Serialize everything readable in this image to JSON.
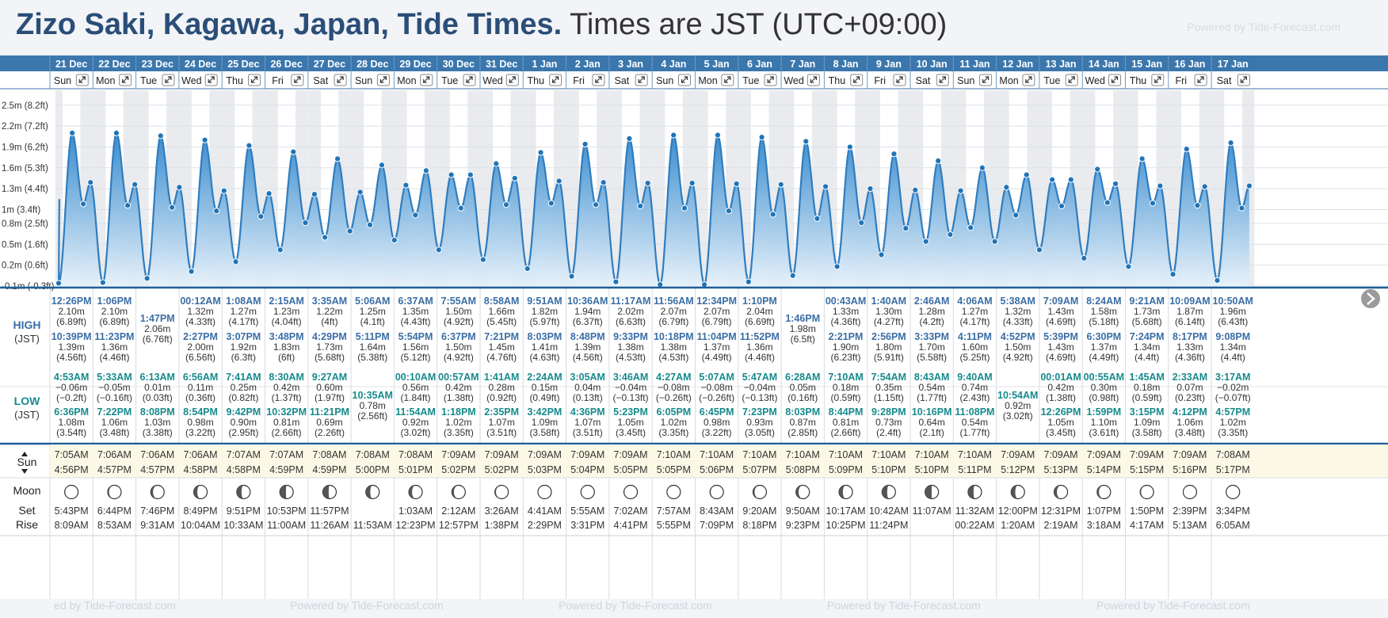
{
  "title": "Zizo Saki, Kagawa, Japan, Tide Times.",
  "title_tz": "Times are JST (UTC+09:00)",
  "powered_by": "Powered by Tide-Forecast.com",
  "powered_by_cut": "ed by Tide-Forecast.com",
  "colors": {
    "header_blue": "#3b77ad",
    "tide_fill": "#3b8fd0",
    "tide_line": "#2f7dbf",
    "high_text": "#3a6ea5",
    "low_text": "#178a8c",
    "sun_bg": "#fbf9e6"
  },
  "labels": {
    "high": "HIGH",
    "low": "LOW",
    "jst": "(JST)",
    "sun": "Sun",
    "moon": "Moon",
    "set": "Set",
    "rise": "Rise"
  },
  "expand_icon": "expand-arrows-icon",
  "chart_data": {
    "type": "area",
    "ylabel": "",
    "y_axis_unit": "m",
    "y_ticks": [
      "-0.1m (-0.3ft)",
      "0.2m (0.6ft)",
      "0.5m (1.6ft)",
      "0.8m (2.5ft)",
      "1m (3.4ft)",
      "1.3m (4.4ft)",
      "1.6m (5.3ft)",
      "1.9m (6.2ft)",
      "2.2m (7.2ft)",
      "2.5m (8.2ft)"
    ],
    "y_tick_values": [
      -0.1,
      0.2,
      0.5,
      0.8,
      1.0,
      1.3,
      1.6,
      1.9,
      2.2,
      2.5
    ],
    "ylim": [
      -0.1,
      2.6
    ],
    "days": [
      {
        "date": "21 Dec",
        "dow": "Sun",
        "highs": [
          {
            "time": "12:26PM",
            "m": "2.10m",
            "ft": "(6.89ft)"
          },
          {
            "time": "10:39PM",
            "m": "1.39m",
            "ft": "(4.56ft)"
          }
        ],
        "lows": [
          {
            "time": "4:53AM",
            "m": "−0.06m",
            "ft": "(−0.2ft)"
          },
          {
            "time": "6:36PM",
            "m": "1.08m",
            "ft": "(3.54ft)"
          }
        ],
        "sunrise": "7:05AM",
        "sunset": "4:56PM",
        "moon_set": "5:43PM",
        "moon_rise": "8:09AM"
      },
      {
        "date": "22 Dec",
        "dow": "Mon",
        "highs": [
          {
            "time": "1:06PM",
            "m": "2.10m",
            "ft": "(6.89ft)"
          },
          {
            "time": "11:23PM",
            "m": "1.36m",
            "ft": "(4.46ft)"
          }
        ],
        "lows": [
          {
            "time": "5:33AM",
            "m": "−0.05m",
            "ft": "(−0.16ft)"
          },
          {
            "time": "7:22PM",
            "m": "1.06m",
            "ft": "(3.48ft)"
          }
        ],
        "sunrise": "7:06AM",
        "sunset": "4:57PM",
        "moon_set": "6:44PM",
        "moon_rise": "8:53AM"
      },
      {
        "date": "23 Dec",
        "dow": "Tue",
        "highs": [
          {
            "time": "1:47PM",
            "m": "2.06m",
            "ft": "(6.76ft)"
          }
        ],
        "lows": [
          {
            "time": "6:13AM",
            "m": "0.01m",
            "ft": "(0.03ft)"
          },
          {
            "time": "8:08PM",
            "m": "1.03m",
            "ft": "(3.38ft)"
          }
        ],
        "sunrise": "7:06AM",
        "sunset": "4:57PM",
        "moon_set": "7:46PM",
        "moon_rise": "9:31AM"
      },
      {
        "date": "24 Dec",
        "dow": "Wed",
        "highs": [
          {
            "time": "00:12AM",
            "m": "1.32m",
            "ft": "(4.33ft)"
          },
          {
            "time": "2:27PM",
            "m": "2.00m",
            "ft": "(6.56ft)"
          }
        ],
        "lows": [
          {
            "time": "6:56AM",
            "m": "0.11m",
            "ft": "(0.36ft)"
          },
          {
            "time": "8:54PM",
            "m": "0.98m",
            "ft": "(3.22ft)"
          }
        ],
        "sunrise": "7:06AM",
        "sunset": "4:58PM",
        "moon_set": "8:49PM",
        "moon_rise": "10:04AM"
      },
      {
        "date": "25 Dec",
        "dow": "Thu",
        "highs": [
          {
            "time": "1:08AM",
            "m": "1.27m",
            "ft": "(4.17ft)"
          },
          {
            "time": "3:07PM",
            "m": "1.92m",
            "ft": "(6.3ft)"
          }
        ],
        "lows": [
          {
            "time": "7:41AM",
            "m": "0.25m",
            "ft": "(0.82ft)"
          },
          {
            "time": "9:42PM",
            "m": "0.90m",
            "ft": "(2.95ft)"
          }
        ],
        "sunrise": "7:07AM",
        "sunset": "4:58PM",
        "moon_set": "9:51PM",
        "moon_rise": "10:33AM"
      },
      {
        "date": "26 Dec",
        "dow": "Fri",
        "highs": [
          {
            "time": "2:15AM",
            "m": "1.23m",
            "ft": "(4.04ft)"
          },
          {
            "time": "3:48PM",
            "m": "1.83m",
            "ft": "(6ft)"
          }
        ],
        "lows": [
          {
            "time": "8:30AM",
            "m": "0.42m",
            "ft": "(1.37ft)"
          },
          {
            "time": "10:32PM",
            "m": "0.81m",
            "ft": "(2.66ft)"
          }
        ],
        "sunrise": "7:07AM",
        "sunset": "4:59PM",
        "moon_set": "10:53PM",
        "moon_rise": "11:00AM"
      },
      {
        "date": "27 Dec",
        "dow": "Sat",
        "highs": [
          {
            "time": "3:35AM",
            "m": "1.22m",
            "ft": "(4ft)"
          },
          {
            "time": "4:29PM",
            "m": "1.73m",
            "ft": "(5.68ft)"
          }
        ],
        "lows": [
          {
            "time": "9:27AM",
            "m": "0.60m",
            "ft": "(1.97ft)"
          },
          {
            "time": "11:21PM",
            "m": "0.69m",
            "ft": "(2.26ft)"
          }
        ],
        "sunrise": "7:08AM",
        "sunset": "4:59PM",
        "moon_set": "11:57PM",
        "moon_rise": "11:26AM"
      },
      {
        "date": "28 Dec",
        "dow": "Sun",
        "highs": [
          {
            "time": "5:06AM",
            "m": "1.25m",
            "ft": "(4.1ft)"
          },
          {
            "time": "5:11PM",
            "m": "1.64m",
            "ft": "(5.38ft)"
          }
        ],
        "lows": [
          {
            "time": "10:35AM",
            "m": "0.78m",
            "ft": "(2.56ft)"
          }
        ],
        "sunrise": "7:08AM",
        "sunset": "5:00PM",
        "moon_set": "",
        "moon_rise": "11:53AM"
      },
      {
        "date": "29 Dec",
        "dow": "Mon",
        "highs": [
          {
            "time": "6:37AM",
            "m": "1.35m",
            "ft": "(4.43ft)"
          },
          {
            "time": "5:54PM",
            "m": "1.56m",
            "ft": "(5.12ft)"
          }
        ],
        "lows": [
          {
            "time": "00:10AM",
            "m": "0.56m",
            "ft": "(1.84ft)"
          },
          {
            "time": "11:54AM",
            "m": "0.92m",
            "ft": "(3.02ft)"
          }
        ],
        "sunrise": "7:08AM",
        "sunset": "5:01PM",
        "moon_set": "1:03AM",
        "moon_rise": "12:23PM"
      },
      {
        "date": "30 Dec",
        "dow": "Tue",
        "highs": [
          {
            "time": "7:55AM",
            "m": "1.50m",
            "ft": "(4.92ft)"
          },
          {
            "time": "6:37PM",
            "m": "1.50m",
            "ft": "(4.92ft)"
          }
        ],
        "lows": [
          {
            "time": "00:57AM",
            "m": "0.42m",
            "ft": "(1.38ft)"
          },
          {
            "time": "1:18PM",
            "m": "1.02m",
            "ft": "(3.35ft)"
          }
        ],
        "sunrise": "7:09AM",
        "sunset": "5:02PM",
        "moon_set": "2:12AM",
        "moon_rise": "12:57PM"
      },
      {
        "date": "31 Dec",
        "dow": "Wed",
        "highs": [
          {
            "time": "8:58AM",
            "m": "1.66m",
            "ft": "(5.45ft)"
          },
          {
            "time": "7:21PM",
            "m": "1.45m",
            "ft": "(4.76ft)"
          }
        ],
        "lows": [
          {
            "time": "1:41AM",
            "m": "0.28m",
            "ft": "(0.92ft)"
          },
          {
            "time": "2:35PM",
            "m": "1.07m",
            "ft": "(3.51ft)"
          }
        ],
        "sunrise": "7:09AM",
        "sunset": "5:02PM",
        "moon_set": "3:26AM",
        "moon_rise": "1:38PM"
      },
      {
        "date": "1 Jan",
        "dow": "Thu",
        "highs": [
          {
            "time": "9:51AM",
            "m": "1.82m",
            "ft": "(5.97ft)"
          },
          {
            "time": "8:03PM",
            "m": "1.41m",
            "ft": "(4.63ft)"
          }
        ],
        "lows": [
          {
            "time": "2:24AM",
            "m": "0.15m",
            "ft": "(0.49ft)"
          },
          {
            "time": "3:42PM",
            "m": "1.09m",
            "ft": "(3.58ft)"
          }
        ],
        "sunrise": "7:09AM",
        "sunset": "5:03PM",
        "moon_set": "4:41AM",
        "moon_rise": "2:29PM"
      },
      {
        "date": "2 Jan",
        "dow": "Fri",
        "highs": [
          {
            "time": "10:36AM",
            "m": "1.94m",
            "ft": "(6.37ft)"
          },
          {
            "time": "8:48PM",
            "m": "1.39m",
            "ft": "(4.56ft)"
          }
        ],
        "lows": [
          {
            "time": "3:05AM",
            "m": "0.04m",
            "ft": "(0.13ft)"
          },
          {
            "time": "4:36PM",
            "m": "1.07m",
            "ft": "(3.51ft)"
          }
        ],
        "sunrise": "7:09AM",
        "sunset": "5:04PM",
        "moon_set": "5:55AM",
        "moon_rise": "3:31PM"
      },
      {
        "date": "3 Jan",
        "dow": "Sat",
        "highs": [
          {
            "time": "11:17AM",
            "m": "2.02m",
            "ft": "(6.63ft)"
          },
          {
            "time": "9:33PM",
            "m": "1.38m",
            "ft": "(4.53ft)"
          }
        ],
        "lows": [
          {
            "time": "3:46AM",
            "m": "−0.04m",
            "ft": "(−0.13ft)"
          },
          {
            "time": "5:23PM",
            "m": "1.05m",
            "ft": "(3.45ft)"
          }
        ],
        "sunrise": "7:09AM",
        "sunset": "5:05PM",
        "moon_set": "7:02AM",
        "moon_rise": "4:41PM"
      },
      {
        "date": "4 Jan",
        "dow": "Sun",
        "highs": [
          {
            "time": "11:56AM",
            "m": "2.07m",
            "ft": "(6.79ft)"
          },
          {
            "time": "10:18PM",
            "m": "1.38m",
            "ft": "(4.53ft)"
          }
        ],
        "lows": [
          {
            "time": "4:27AM",
            "m": "−0.08m",
            "ft": "(−0.26ft)"
          },
          {
            "time": "6:05PM",
            "m": "1.02m",
            "ft": "(3.35ft)"
          }
        ],
        "sunrise": "7:10AM",
        "sunset": "5:05PM",
        "moon_set": "7:57AM",
        "moon_rise": "5:55PM"
      },
      {
        "date": "5 Jan",
        "dow": "Mon",
        "highs": [
          {
            "time": "12:34PM",
            "m": "2.07m",
            "ft": "(6.79ft)"
          },
          {
            "time": "11:04PM",
            "m": "1.37m",
            "ft": "(4.49ft)"
          }
        ],
        "lows": [
          {
            "time": "5:07AM",
            "m": "−0.08m",
            "ft": "(−0.26ft)"
          },
          {
            "time": "6:45PM",
            "m": "0.98m",
            "ft": "(3.22ft)"
          }
        ],
        "sunrise": "7:10AM",
        "sunset": "5:06PM",
        "moon_set": "8:43AM",
        "moon_rise": "7:09PM"
      },
      {
        "date": "6 Jan",
        "dow": "Tue",
        "highs": [
          {
            "time": "1:10PM",
            "m": "2.04m",
            "ft": "(6.69ft)"
          },
          {
            "time": "11:52PM",
            "m": "1.36m",
            "ft": "(4.46ft)"
          }
        ],
        "lows": [
          {
            "time": "5:47AM",
            "m": "−0.04m",
            "ft": "(−0.13ft)"
          },
          {
            "time": "7:23PM",
            "m": "0.93m",
            "ft": "(3.05ft)"
          }
        ],
        "sunrise": "7:10AM",
        "sunset": "5:07PM",
        "moon_set": "9:20AM",
        "moon_rise": "8:18PM"
      },
      {
        "date": "7 Jan",
        "dow": "Wed",
        "highs": [
          {
            "time": "1:46PM",
            "m": "1.98m",
            "ft": "(6.5ft)"
          }
        ],
        "lows": [
          {
            "time": "6:28AM",
            "m": "0.05m",
            "ft": "(0.16ft)"
          },
          {
            "time": "8:03PM",
            "m": "0.87m",
            "ft": "(2.85ft)"
          }
        ],
        "sunrise": "7:10AM",
        "sunset": "5:08PM",
        "moon_set": "9:50AM",
        "moon_rise": "9:23PM"
      },
      {
        "date": "8 Jan",
        "dow": "Thu",
        "highs": [
          {
            "time": "00:43AM",
            "m": "1.33m",
            "ft": "(4.36ft)"
          },
          {
            "time": "2:21PM",
            "m": "1.90m",
            "ft": "(6.23ft)"
          }
        ],
        "lows": [
          {
            "time": "7:10AM",
            "m": "0.18m",
            "ft": "(0.59ft)"
          },
          {
            "time": "8:44PM",
            "m": "0.81m",
            "ft": "(2.66ft)"
          }
        ],
        "sunrise": "7:10AM",
        "sunset": "5:09PM",
        "moon_set": "10:17AM",
        "moon_rise": "10:25PM"
      },
      {
        "date": "9 Jan",
        "dow": "Fri",
        "highs": [
          {
            "time": "1:40AM",
            "m": "1.30m",
            "ft": "(4.27ft)"
          },
          {
            "time": "2:56PM",
            "m": "1.80m",
            "ft": "(5.91ft)"
          }
        ],
        "lows": [
          {
            "time": "7:54AM",
            "m": "0.35m",
            "ft": "(1.15ft)"
          },
          {
            "time": "9:28PM",
            "m": "0.73m",
            "ft": "(2.4ft)"
          }
        ],
        "sunrise": "7:10AM",
        "sunset": "5:10PM",
        "moon_set": "10:42AM",
        "moon_rise": "11:24PM"
      },
      {
        "date": "10 Jan",
        "dow": "Sat",
        "highs": [
          {
            "time": "2:46AM",
            "m": "1.28m",
            "ft": "(4.2ft)"
          },
          {
            "time": "3:33PM",
            "m": "1.70m",
            "ft": "(5.58ft)"
          }
        ],
        "lows": [
          {
            "time": "8:43AM",
            "m": "0.54m",
            "ft": "(1.77ft)"
          },
          {
            "time": "10:16PM",
            "m": "0.64m",
            "ft": "(2.1ft)"
          }
        ],
        "sunrise": "7:10AM",
        "sunset": "5:10PM",
        "moon_set": "11:07AM",
        "moon_rise": ""
      },
      {
        "date": "11 Jan",
        "dow": "Sun",
        "highs": [
          {
            "time": "4:06AM",
            "m": "1.27m",
            "ft": "(4.17ft)"
          },
          {
            "time": "4:11PM",
            "m": "1.60m",
            "ft": "(5.25ft)"
          }
        ],
        "lows": [
          {
            "time": "9:40AM",
            "m": "0.74m",
            "ft": "(2.43ft)"
          },
          {
            "time": "11:08PM",
            "m": "0.54m",
            "ft": "(1.77ft)"
          }
        ],
        "sunrise": "7:10AM",
        "sunset": "5:11PM",
        "moon_set": "11:32AM",
        "moon_rise": "00:22AM"
      },
      {
        "date": "12 Jan",
        "dow": "Mon",
        "highs": [
          {
            "time": "5:38AM",
            "m": "1.32m",
            "ft": "(4.33ft)"
          },
          {
            "time": "4:52PM",
            "m": "1.50m",
            "ft": "(4.92ft)"
          }
        ],
        "lows": [
          {
            "time": "10:54AM",
            "m": "0.92m",
            "ft": "(3.02ft)"
          }
        ],
        "sunrise": "7:09AM",
        "sunset": "5:12PM",
        "moon_set": "12:00PM",
        "moon_rise": "1:20AM"
      },
      {
        "date": "13 Jan",
        "dow": "Tue",
        "highs": [
          {
            "time": "7:09AM",
            "m": "1.43m",
            "ft": "(4.69ft)"
          },
          {
            "time": "5:39PM",
            "m": "1.43m",
            "ft": "(4.69ft)"
          }
        ],
        "lows": [
          {
            "time": "00:01AM",
            "m": "0.42m",
            "ft": "(1.38ft)"
          },
          {
            "time": "12:26PM",
            "m": "1.05m",
            "ft": "(3.45ft)"
          }
        ],
        "sunrise": "7:09AM",
        "sunset": "5:13PM",
        "moon_set": "12:31PM",
        "moon_rise": "2:19AM"
      },
      {
        "date": "14 Jan",
        "dow": "Wed",
        "highs": [
          {
            "time": "8:24AM",
            "m": "1.58m",
            "ft": "(5.18ft)"
          },
          {
            "time": "6:30PM",
            "m": "1.37m",
            "ft": "(4.49ft)"
          }
        ],
        "lows": [
          {
            "time": "00:55AM",
            "m": "0.30m",
            "ft": "(0.98ft)"
          },
          {
            "time": "1:59PM",
            "m": "1.10m",
            "ft": "(3.61ft)"
          }
        ],
        "sunrise": "7:09AM",
        "sunset": "5:14PM",
        "moon_set": "1:07PM",
        "moon_rise": "3:18AM"
      },
      {
        "date": "15 Jan",
        "dow": "Thu",
        "highs": [
          {
            "time": "9:21AM",
            "m": "1.73m",
            "ft": "(5.68ft)"
          },
          {
            "time": "7:24PM",
            "m": "1.34m",
            "ft": "(4.4ft)"
          }
        ],
        "lows": [
          {
            "time": "1:45AM",
            "m": "0.18m",
            "ft": "(0.59ft)"
          },
          {
            "time": "3:15PM",
            "m": "1.09m",
            "ft": "(3.58ft)"
          }
        ],
        "sunrise": "7:09AM",
        "sunset": "5:15PM",
        "moon_set": "1:50PM",
        "moon_rise": "4:17AM"
      },
      {
        "date": "16 Jan",
        "dow": "Fri",
        "highs": [
          {
            "time": "10:09AM",
            "m": "1.87m",
            "ft": "(6.14ft)"
          },
          {
            "time": "8:17PM",
            "m": "1.33m",
            "ft": "(4.36ft)"
          }
        ],
        "lows": [
          {
            "time": "2:33AM",
            "m": "0.07m",
            "ft": "(0.23ft)"
          },
          {
            "time": "4:12PM",
            "m": "1.06m",
            "ft": "(3.48ft)"
          }
        ],
        "sunrise": "7:09AM",
        "sunset": "5:16PM",
        "moon_set": "2:39PM",
        "moon_rise": "5:13AM"
      },
      {
        "date": "17 Jan",
        "dow": "Sat",
        "highs": [
          {
            "time": "10:50AM",
            "m": "1.96m",
            "ft": "(6.43ft)"
          },
          {
            "time": "9:08PM",
            "m": "1.34m",
            "ft": "(4.4ft)"
          }
        ],
        "lows": [
          {
            "time": "3:17AM",
            "m": "−0.02m",
            "ft": "(−0.07ft)"
          },
          {
            "time": "4:57PM",
            "m": "1.02m",
            "ft": "(3.35ft)"
          }
        ],
        "sunrise": "7:08AM",
        "sunset": "5:17PM",
        "moon_set": "3:34PM",
        "moon_rise": "6:05AM"
      }
    ],
    "initial_level_m": 1.15,
    "grid": true,
    "legend": "none"
  }
}
